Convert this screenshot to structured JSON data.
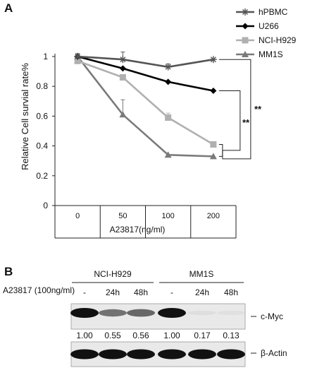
{
  "panel_a": {
    "label": "A"
  },
  "panel_b": {
    "label": "B",
    "treatment_label": "A23817 (100ng/ml)",
    "groups": [
      {
        "name": "NCI-H929",
        "lanes": [
          "-",
          "24h",
          "48h"
        ]
      },
      {
        "name": "MM1S",
        "lanes": [
          "-",
          "24h",
          "48h"
        ]
      }
    ],
    "blots": [
      {
        "name": "c-Myc",
        "quantification": [
          "1.00",
          "0.55",
          "0.56",
          "1.00",
          "0.17",
          "0.13"
        ],
        "band_intensity": [
          1.0,
          0.55,
          0.6,
          1.0,
          0.05,
          0.04
        ]
      },
      {
        "name": "β-Actin",
        "quantification": null,
        "band_intensity": [
          1.0,
          1.0,
          1.0,
          1.0,
          1.0,
          1.0
        ]
      }
    ]
  },
  "chart_data": {
    "type": "line",
    "categories": [
      "0",
      "50",
      "100",
      "200"
    ],
    "xlabel": "A23817(ng/ml)",
    "ylabel": "Relative Cell survial rate%",
    "ylim": [
      0,
      1
    ],
    "yticks": [
      "0",
      "0.2",
      "0.4",
      "0.6",
      "0.8",
      "1"
    ],
    "legend_position": "top-right",
    "series": [
      {
        "name": "hPBMC",
        "marker": "star",
        "color": "#555555",
        "values": [
          1.0,
          0.98,
          0.93,
          0.98
        ],
        "errors": [
          0.02,
          0.05,
          0.02,
          0.0
        ]
      },
      {
        "name": "U266",
        "marker": "diamond",
        "color": "#000000",
        "values": [
          1.0,
          0.92,
          0.83,
          0.77
        ],
        "errors": [
          0.0,
          0.0,
          0.0,
          0.0
        ]
      },
      {
        "name": "NCI-H929",
        "marker": "square",
        "color": "#b0b0b0",
        "values": [
          0.97,
          0.86,
          0.59,
          0.41
        ],
        "errors": [
          0.0,
          0.0,
          0.03,
          0.0
        ]
      },
      {
        "name": "MM1S",
        "marker": "triangle",
        "color": "#7a7a7a",
        "values": [
          1.0,
          0.61,
          0.34,
          0.33
        ],
        "errors": [
          0.0,
          0.1,
          0.0,
          0.0
        ]
      }
    ],
    "annotations": [
      "**",
      "**"
    ]
  }
}
